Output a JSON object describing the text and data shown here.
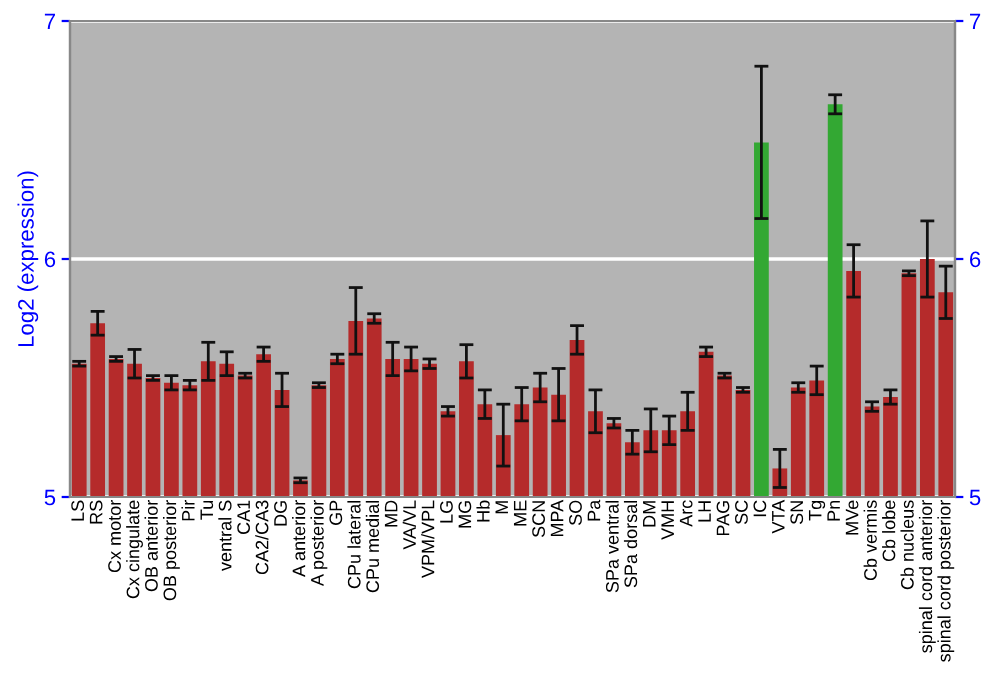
{
  "chart_data": {
    "type": "bar",
    "ylabel": "Log2 (expression)",
    "categories": [
      "LS",
      "RS",
      "Cx motor",
      "Cx cingulate",
      "OB anterior",
      "OB posterior",
      "Pir",
      "Tu",
      "ventral S",
      "CA1",
      "CA2/CA3",
      "DG",
      "A anterior",
      "A posterior",
      "GP",
      "CPu lateral",
      "CPu medial",
      "MD",
      "VA/VL",
      "VPM/VPL",
      "LG",
      "MG",
      "Hb",
      "M",
      "ME",
      "SCN",
      "MPA",
      "SO",
      "Pa",
      "SPa ventral",
      "SPa dorsal",
      "DM",
      "VMH",
      "Arc",
      "LH",
      "PAG",
      "SC",
      "IC",
      "VTA",
      "SN",
      "Tg",
      "Pn",
      "MVe",
      "Cb vermis",
      "Cb lobe",
      "Cb nucleus",
      "spinal cord anterior",
      "spinal cord posterior"
    ],
    "values": [
      5.56,
      5.73,
      5.58,
      5.56,
      5.5,
      5.48,
      5.47,
      5.57,
      5.56,
      5.51,
      5.6,
      5.45,
      5.07,
      5.47,
      5.58,
      5.74,
      5.75,
      5.58,
      5.58,
      5.56,
      5.36,
      5.57,
      5.39,
      5.26,
      5.39,
      5.46,
      5.43,
      5.66,
      5.36,
      5.31,
      5.23,
      5.28,
      5.28,
      5.36,
      5.61,
      5.51,
      5.45,
      6.49,
      5.12,
      5.46,
      5.49,
      6.65,
      5.95,
      5.38,
      5.42,
      5.94,
      6.0,
      5.86
    ],
    "errors": [
      0.01,
      0.05,
      0.01,
      0.06,
      0.01,
      0.03,
      0.02,
      0.08,
      0.05,
      0.01,
      0.03,
      0.07,
      0.01,
      0.01,
      0.02,
      0.14,
      0.02,
      0.07,
      0.05,
      0.02,
      0.02,
      0.07,
      0.06,
      0.13,
      0.07,
      0.06,
      0.11,
      0.06,
      0.09,
      0.02,
      0.05,
      0.09,
      0.06,
      0.08,
      0.02,
      0.01,
      0.01,
      0.32,
      0.08,
      0.02,
      0.06,
      0.04,
      0.11,
      0.02,
      0.03,
      0.01,
      0.16,
      0.11
    ],
    "colors": [
      "#b52b2b",
      "#b52b2b",
      "#b52b2b",
      "#b52b2b",
      "#b52b2b",
      "#b52b2b",
      "#b52b2b",
      "#b52b2b",
      "#b52b2b",
      "#b52b2b",
      "#b52b2b",
      "#b52b2b",
      "#b52b2b",
      "#b52b2b",
      "#b52b2b",
      "#b52b2b",
      "#b52b2b",
      "#b52b2b",
      "#b52b2b",
      "#b52b2b",
      "#b52b2b",
      "#b52b2b",
      "#b52b2b",
      "#b52b2b",
      "#b52b2b",
      "#b52b2b",
      "#b52b2b",
      "#b52b2b",
      "#b52b2b",
      "#b52b2b",
      "#b52b2b",
      "#b52b2b",
      "#b52b2b",
      "#b52b2b",
      "#b52b2b",
      "#b52b2b",
      "#b52b2b",
      "#33a833",
      "#b52b2b",
      "#b52b2b",
      "#b52b2b",
      "#33a833",
      "#b52b2b",
      "#b52b2b",
      "#b52b2b",
      "#b52b2b",
      "#b52b2b",
      "#b52b2b"
    ],
    "ylim": [
      5,
      7
    ],
    "yticks": [
      5,
      6,
      7
    ],
    "y2lim": [
      5,
      7
    ],
    "y2ticks": [
      5,
      6,
      7
    ],
    "grid": "y"
  }
}
